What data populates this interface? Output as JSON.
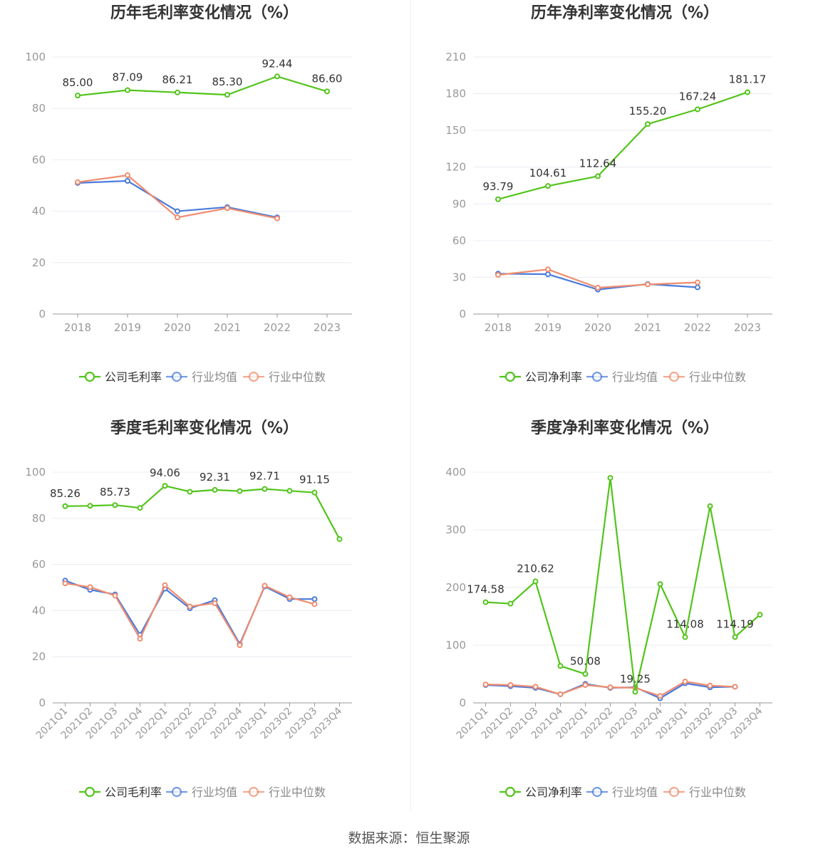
{
  "colors": {
    "company": "#52c41a",
    "avg": "#4a7bdc",
    "median": "#f08c6e",
    "grid": "#e9ecf2",
    "axis": "#999999",
    "text": "#333333"
  },
  "legend_icons": [
    "circle-line-icon",
    "circle-line-icon",
    "circle-line-icon"
  ],
  "source": "数据来源：恒生聚源",
  "chart_data": [
    {
      "type": "line",
      "title": "历年毛利率变化情况（%）",
      "categories": [
        "2018",
        "2019",
        "2020",
        "2021",
        "2022",
        "2023"
      ],
      "ylim": [
        0,
        100
      ],
      "yticks": [
        0,
        20,
        40,
        60,
        80,
        100
      ],
      "series": [
        {
          "name": "公司毛利率",
          "role": "company",
          "values": [
            85.0,
            87.09,
            86.21,
            85.3,
            92.44,
            86.6
          ],
          "labels": [
            "85.00",
            "87.09",
            "86.21",
            "85.30",
            "92.44",
            "86.60"
          ]
        },
        {
          "name": "行业均值",
          "role": "avg",
          "values": [
            51.0,
            51.8,
            40.0,
            41.6,
            37.6,
            null
          ]
        },
        {
          "name": "行业中位数",
          "role": "median",
          "values": [
            51.3,
            54.0,
            37.6,
            41.2,
            37.2,
            null
          ]
        }
      ]
    },
    {
      "type": "line",
      "title": "历年净利率变化情况（%）",
      "categories": [
        "2018",
        "2019",
        "2020",
        "2021",
        "2022",
        "2023"
      ],
      "ylim": [
        0,
        210
      ],
      "yticks": [
        0,
        30,
        60,
        90,
        120,
        150,
        180,
        210
      ],
      "series": [
        {
          "name": "公司净利率",
          "role": "company",
          "values": [
            93.79,
            104.61,
            112.64,
            155.2,
            167.24,
            181.17
          ],
          "labels": [
            "93.79",
            "104.61",
            "112.64",
            "155.20",
            "167.24",
            "181.17"
          ]
        },
        {
          "name": "行业均值",
          "role": "avg",
          "values": [
            33.0,
            32.5,
            20.0,
            24.5,
            21.8,
            null
          ]
        },
        {
          "name": "行业中位数",
          "role": "median",
          "values": [
            32.0,
            36.5,
            21.5,
            24.2,
            25.8,
            null
          ]
        }
      ]
    },
    {
      "type": "line",
      "title": "季度毛利率变化情况（%）",
      "categories": [
        "2021Q1",
        "2021Q2",
        "2021Q3",
        "2021Q4",
        "2022Q1",
        "2022Q2",
        "2022Q3",
        "2022Q4",
        "2023Q1",
        "2023Q2",
        "2023Q3",
        "2023Q4"
      ],
      "ylim": [
        0,
        100
      ],
      "yticks": [
        0,
        20,
        40,
        60,
        80,
        100
      ],
      "series": [
        {
          "name": "公司毛利率",
          "role": "company",
          "values": [
            85.26,
            85.4,
            85.73,
            84.5,
            94.06,
            91.5,
            92.31,
            91.8,
            92.71,
            91.9,
            91.15,
            71.0
          ],
          "labels": [
            "85.26",
            null,
            "85.73",
            null,
            "94.06",
            null,
            "92.31",
            null,
            "92.71",
            null,
            "91.15",
            null
          ]
        },
        {
          "name": "行业均值",
          "role": "avg",
          "values": [
            53.0,
            49.0,
            47.0,
            29.5,
            49.5,
            41.0,
            44.5,
            25.5,
            50.5,
            45.0,
            45.0,
            null
          ]
        },
        {
          "name": "行业中位数",
          "role": "median",
          "values": [
            51.8,
            50.2,
            46.5,
            27.8,
            51.0,
            41.8,
            43.2,
            25.0,
            50.8,
            45.8,
            42.8,
            null
          ]
        }
      ]
    },
    {
      "type": "line",
      "title": "季度净利率变化情况（%）",
      "categories": [
        "2021Q1",
        "2021Q2",
        "2021Q3",
        "2021Q4",
        "2022Q1",
        "2022Q2",
        "2022Q3",
        "2022Q4",
        "2023Q1",
        "2023Q2",
        "2023Q3",
        "2023Q4"
      ],
      "ylim": [
        0,
        400
      ],
      "yticks": [
        0,
        100,
        200,
        300,
        400
      ],
      "series": [
        {
          "name": "公司净利率",
          "role": "company",
          "values": [
            174.58,
            172.0,
            210.62,
            64.0,
            50.08,
            390.0,
            19.25,
            206.0,
            114.08,
            341.0,
            114.19,
            153.0
          ],
          "labels": [
            "174.58",
            null,
            "210.62",
            null,
            "50.08",
            null,
            "19.25",
            null,
            "114.08",
            null,
            "114.19",
            null
          ]
        },
        {
          "name": "行业均值",
          "role": "avg",
          "values": [
            31.0,
            29.0,
            26.0,
            15.0,
            33.0,
            26.0,
            27.0,
            8.0,
            34.0,
            27.0,
            28.0,
            null
          ]
        },
        {
          "name": "行业中位数",
          "role": "median",
          "values": [
            32.0,
            31.0,
            28.0,
            15.0,
            31.0,
            27.0,
            26.0,
            12.0,
            37.0,
            30.0,
            28.0,
            null
          ]
        }
      ]
    }
  ]
}
